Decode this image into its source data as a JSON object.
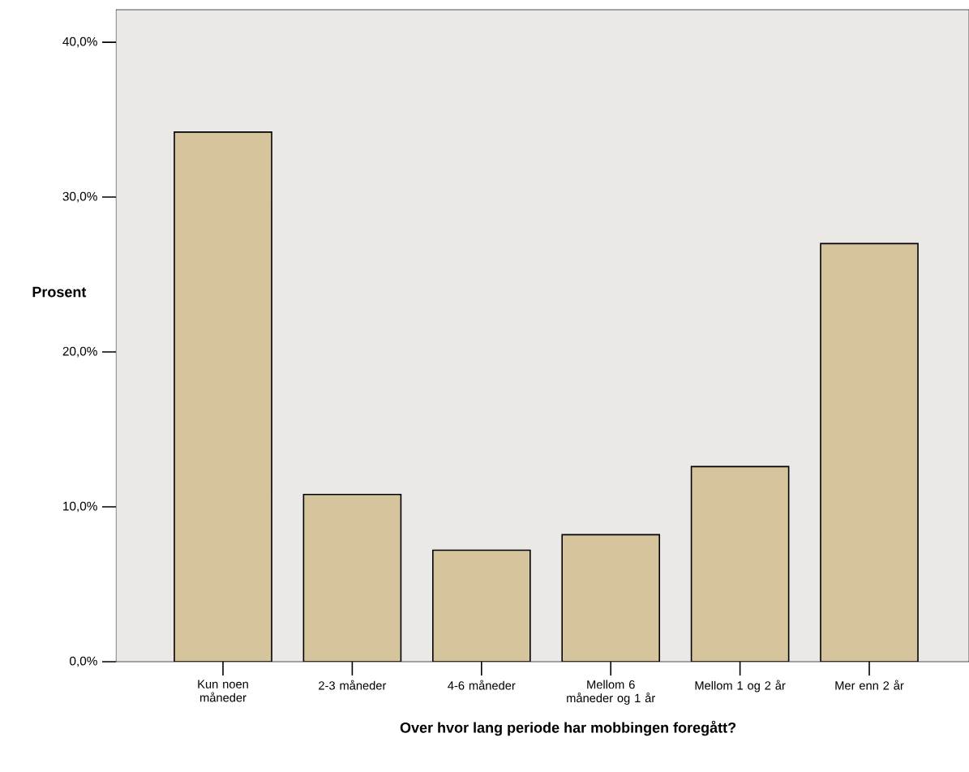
{
  "chart_data": {
    "type": "bar",
    "xlabel": "Over hvor lang periode har mobbingen foregått?",
    "ylabel": "Prosent",
    "categories": [
      "Kun noen måneder",
      "2-3 måneder",
      "4-6 måneder",
      "Mellom 6 måneder og 1 år",
      "Mellom 1 og 2 år",
      "Mer enn 2 år"
    ],
    "values": [
      34.2,
      10.8,
      7.2,
      8.2,
      12.6,
      27.0
    ],
    "color": "#d6c49c",
    "ylim": [
      0,
      42.1
    ],
    "yticks": [
      {
        "value": 0,
        "label": "0,0%"
      },
      {
        "value": 10,
        "label": "10,0%"
      },
      {
        "value": 20,
        "label": "20,0%"
      },
      {
        "value": 30,
        "label": "30,0%"
      },
      {
        "value": 40,
        "label": "40,0%"
      }
    ],
    "grid": false
  }
}
